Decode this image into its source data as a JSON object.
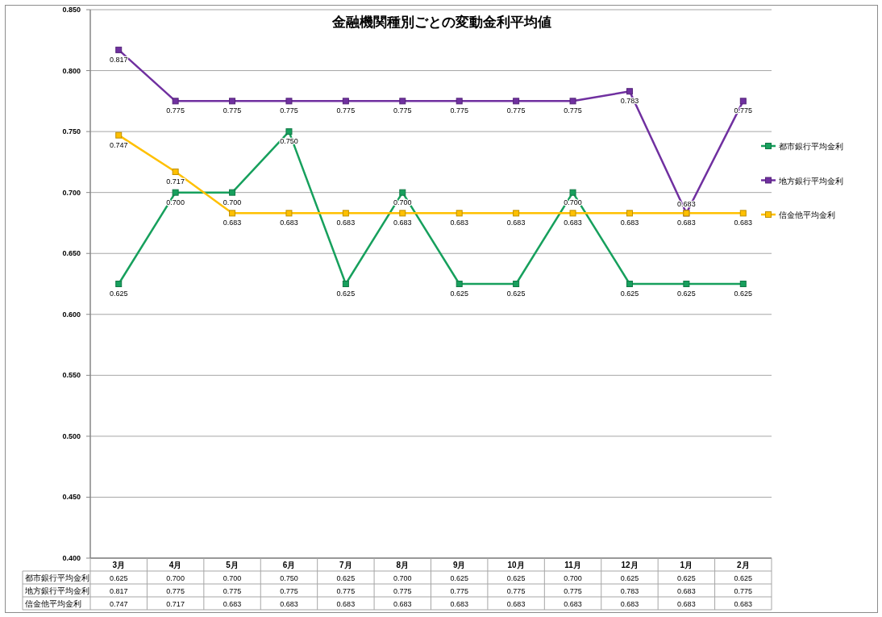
{
  "chart_data": {
    "type": "line",
    "title": "金融機関種別ごとの変動金利平均値",
    "categories": [
      "3月",
      "4月",
      "5月",
      "6月",
      "7月",
      "8月",
      "9月",
      "10月",
      "11月",
      "12月",
      "1月",
      "2月"
    ],
    "series": [
      {
        "name": "都市銀行平均金利",
        "color": "#17a05d",
        "values": [
          0.625,
          0.7,
          0.7,
          0.75,
          0.625,
          0.7,
          0.625,
          0.625,
          0.7,
          0.625,
          0.625,
          0.625
        ],
        "value_labels": [
          "0.625",
          "0.700",
          "0.700",
          "0.750",
          "0.625",
          "0.700",
          "0.625",
          "0.625",
          "0.700",
          "0.625",
          "0.625",
          "0.625"
        ]
      },
      {
        "name": "地方銀行平均金利",
        "color": "#7030a0",
        "values": [
          0.817,
          0.775,
          0.775,
          0.775,
          0.775,
          0.775,
          0.775,
          0.775,
          0.775,
          0.783,
          0.683,
          0.775
        ],
        "value_labels": [
          "0.817",
          "0.775",
          "0.775",
          "0.775",
          "0.775",
          "0.775",
          "0.775",
          "0.775",
          "0.775",
          "0.783",
          "0.683",
          "0.775"
        ]
      },
      {
        "name": "信金他平均金利",
        "color": "#ffc000",
        "values": [
          0.747,
          0.717,
          0.683,
          0.683,
          0.683,
          0.683,
          0.683,
          0.683,
          0.683,
          0.683,
          0.683,
          0.683
        ],
        "value_labels": [
          "0.747",
          "0.717",
          "0.683",
          "0.683",
          "0.683",
          "0.683",
          "0.683",
          "0.683",
          "0.683",
          "0.683",
          "0.683",
          "0.683"
        ]
      }
    ],
    "ylim": [
      0.4,
      0.85
    ],
    "yticks": [
      {
        "value": 0.4,
        "label": "0.400"
      },
      {
        "value": 0.45,
        "label": "0.450"
      },
      {
        "value": 0.5,
        "label": "0.500"
      },
      {
        "value": 0.55,
        "label": "0.550"
      },
      {
        "value": 0.6,
        "label": "0.600"
      },
      {
        "value": 0.65,
        "label": "0.650"
      },
      {
        "value": 0.7,
        "label": "0.700"
      },
      {
        "value": 0.75,
        "label": "0.750"
      },
      {
        "value": 0.8,
        "label": "0.800"
      },
      {
        "value": 0.85,
        "label": "0.850"
      }
    ],
    "grid": "y",
    "legend": "right",
    "marker": "square",
    "line_style": "solid"
  }
}
